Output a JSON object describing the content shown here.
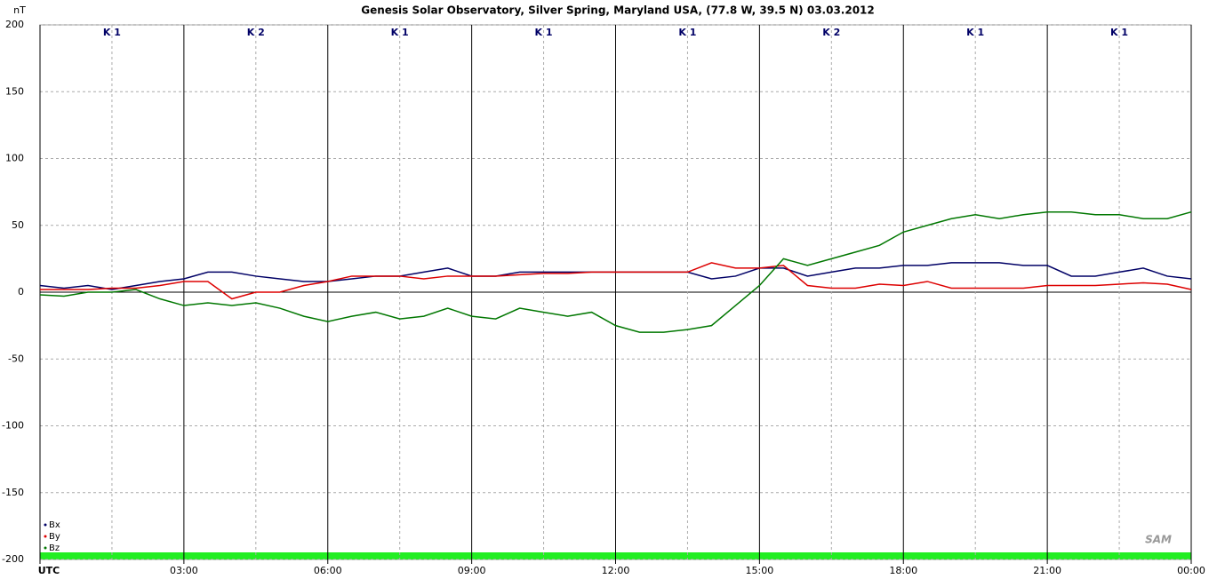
{
  "chart_data": {
    "type": "line",
    "title": "Genesis Solar Observatory, Silver Spring, Maryland USA, (77.8 W, 39.5 N)  03.03.2012",
    "ylabel": "nT",
    "logo": "SAM",
    "k_index": [
      "K 1",
      "K 2",
      "K 1",
      "K 1",
      "K 1",
      "K 2",
      "K 1",
      "K 1"
    ],
    "x": [
      0,
      0.5,
      1,
      1.5,
      2,
      2.5,
      3,
      3.5,
      4,
      4.5,
      5,
      5.5,
      6,
      6.5,
      7,
      7.5,
      8,
      8.5,
      9,
      9.5,
      10,
      10.5,
      11,
      11.5,
      12,
      12.5,
      13,
      13.5,
      14,
      14.5,
      15,
      15.5,
      16,
      16.5,
      17,
      17.5,
      18,
      18.5,
      19,
      19.5,
      20,
      20.5,
      21,
      21.5,
      22,
      22.5,
      23,
      23.5,
      24
    ],
    "series": [
      {
        "name": "Bx",
        "color": "#000066",
        "values": [
          5,
          3,
          5,
          2,
          5,
          8,
          10,
          15,
          15,
          12,
          10,
          8,
          8,
          10,
          12,
          12,
          15,
          18,
          12,
          12,
          15,
          15,
          15,
          15,
          15,
          15,
          15,
          15,
          10,
          12,
          18,
          18,
          12,
          15,
          18,
          18,
          20,
          20,
          22,
          22,
          22,
          20,
          20,
          12,
          12,
          15,
          18,
          12,
          10
        ]
      },
      {
        "name": "By",
        "color": "#dd0000",
        "values": [
          2,
          2,
          2,
          3,
          3,
          5,
          8,
          8,
          -5,
          0,
          0,
          5,
          8,
          12,
          12,
          12,
          10,
          12,
          12,
          12,
          13,
          14,
          14,
          15,
          15,
          15,
          15,
          15,
          22,
          18,
          18,
          20,
          5,
          3,
          3,
          6,
          5,
          8,
          3,
          3,
          3,
          3,
          5,
          5,
          5,
          6,
          7,
          6,
          2
        ]
      },
      {
        "name": "Bz",
        "color": "#007700",
        "values": [
          -2,
          -3,
          0,
          0,
          2,
          -5,
          -10,
          -8,
          -10,
          -8,
          -12,
          -18,
          -22,
          -18,
          -15,
          -20,
          -18,
          -12,
          -18,
          -20,
          -12,
          -15,
          -18,
          -15,
          -25,
          -30,
          -30,
          -28,
          -25,
          -10,
          5,
          25,
          20,
          25,
          30,
          35,
          45,
          50,
          55,
          58,
          55,
          58,
          60,
          60,
          58,
          58,
          55,
          55,
          60
        ]
      }
    ],
    "xlim": [
      0,
      24
    ],
    "xticks": [
      {
        "value": 0,
        "label": "UTC"
      },
      {
        "value": 3,
        "label": "03:00"
      },
      {
        "value": 6,
        "label": "06:00"
      },
      {
        "value": 9,
        "label": "09:00"
      },
      {
        "value": 12,
        "label": "12:00"
      },
      {
        "value": 15,
        "label": "15:00"
      },
      {
        "value": 18,
        "label": "18:00"
      },
      {
        "value": 21,
        "label": "21:00"
      },
      {
        "value": 24,
        "label": "00:00"
      }
    ],
    "ylim": [
      -200,
      200
    ],
    "yticks": [
      -200,
      -150,
      -100,
      -50,
      0,
      50,
      100,
      150,
      200
    ],
    "grid": true,
    "legend": "lower left"
  }
}
